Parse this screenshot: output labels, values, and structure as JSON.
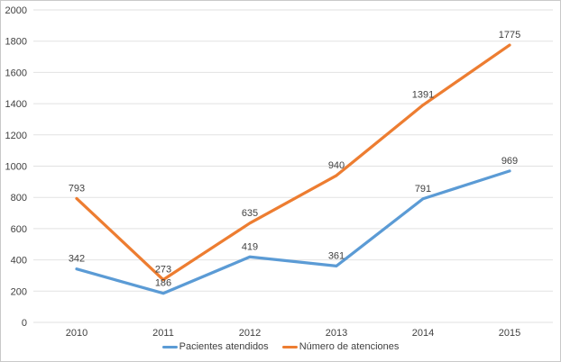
{
  "chart_data": {
    "type": "line",
    "title": "",
    "xlabel": "",
    "ylabel": "",
    "x": [
      "2010",
      "2011",
      "2012",
      "2013",
      "2014",
      "2015"
    ],
    "series": [
      {
        "name": "Pacientes atendidos",
        "color": "#5B9BD5",
        "values": [
          342,
          186,
          419,
          361,
          791,
          969
        ]
      },
      {
        "name": "Número de atenciones",
        "color": "#ED7D31",
        "values": [
          793,
          273,
          635,
          940,
          1391,
          1775
        ]
      }
    ],
    "ylim": [
      0,
      2000
    ],
    "ytick_step": 200,
    "yticks": [
      0,
      200,
      400,
      600,
      800,
      1000,
      1200,
      1400,
      1600,
      1800,
      2000
    ],
    "grid": true,
    "data_labels": true,
    "legend_position": "bottom"
  },
  "colors": {
    "background": "#FFFFFF",
    "border": "#C9C9C9",
    "grid": "#E2E2E2",
    "axis_text": "#404040",
    "data_label_text": "#404040"
  }
}
